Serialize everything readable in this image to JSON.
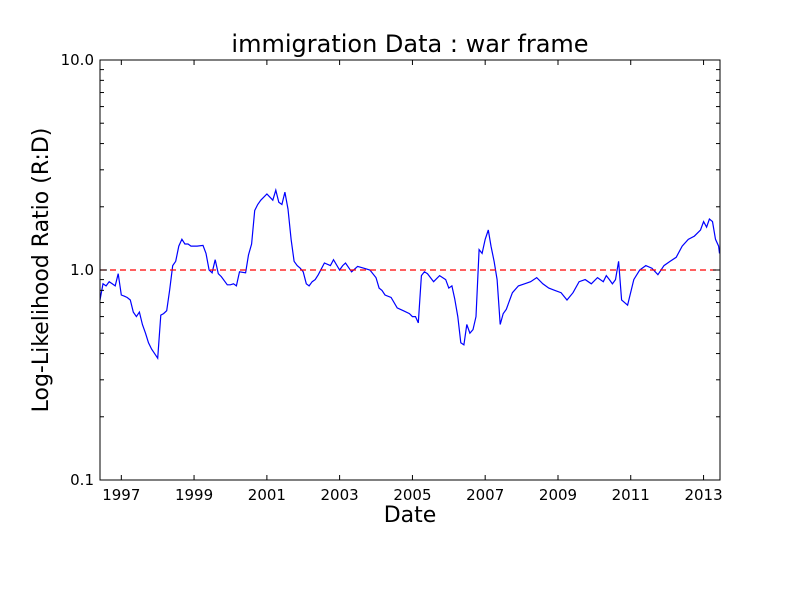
{
  "chart_data": {
    "type": "line",
    "title": "immigration Data : war frame",
    "xlabel": "Date",
    "ylabel": "Log-Likelihood Ratio (R:D)",
    "yscale": "log",
    "xlim": [
      "1996-06-01",
      "2013-06-15"
    ],
    "ylim": [
      0.1,
      10.0
    ],
    "x_ticks": [
      {
        "value": "1997-01-01",
        "label": "1997"
      },
      {
        "value": "1999-01-01",
        "label": "1999"
      },
      {
        "value": "2001-01-01",
        "label": "2001"
      },
      {
        "value": "2003-01-01",
        "label": "2003"
      },
      {
        "value": "2005-01-01",
        "label": "2005"
      },
      {
        "value": "2007-01-01",
        "label": "2007"
      },
      {
        "value": "2009-01-01",
        "label": "2009"
      },
      {
        "value": "2011-01-01",
        "label": "2011"
      },
      {
        "value": "2013-01-01",
        "label": "2013"
      }
    ],
    "y_ticks": [
      {
        "value": 0.1,
        "label": "0.1"
      },
      {
        "value": 1.0,
        "label": "1.0"
      },
      {
        "value": 10.0,
        "label": "10.0"
      }
    ],
    "grid": false,
    "reference_line": {
      "y": 1.0,
      "style": "dashed",
      "color": "#ff0000"
    },
    "series": [
      {
        "color": "#0000ff",
        "x": [
          "1996-06-01",
          "1996-07-01",
          "1996-08-01",
          "1996-09-01",
          "1996-10-01",
          "1996-11-01",
          "1996-12-01",
          "1997-01-01",
          "1997-02-01",
          "1997-03-01",
          "1997-04-01",
          "1997-05-01",
          "1997-06-01",
          "1997-07-01",
          "1997-08-01",
          "1997-09-01",
          "1997-10-01",
          "1997-11-01",
          "1997-12-01",
          "1998-01-01",
          "1998-02-01",
          "1998-03-01",
          "1998-04-01",
          "1998-05-01",
          "1998-06-01",
          "1998-07-01",
          "1998-08-01",
          "1998-09-01",
          "1998-10-01",
          "1998-11-01",
          "1998-12-01",
          "1999-02-01",
          "1999-04-01",
          "1999-05-01",
          "1999-06-01",
          "1999-07-01",
          "1999-08-01",
          "1999-09-01",
          "1999-10-01",
          "1999-12-01",
          "2000-01-01",
          "2000-02-01",
          "2000-03-01",
          "2000-04-01",
          "2000-06-01",
          "2000-07-01",
          "2000-08-01",
          "2000-09-01",
          "2000-10-01",
          "2000-11-01",
          "2001-01-01",
          "2001-03-01",
          "2001-04-01",
          "2001-05-01",
          "2001-06-01",
          "2001-07-01",
          "2001-08-01",
          "2001-09-01",
          "2001-10-01",
          "2001-11-01",
          "2001-12-01",
          "2002-01-01",
          "2002-02-01",
          "2002-03-01",
          "2002-04-01",
          "2002-05-01",
          "2002-06-01",
          "2002-08-01",
          "2002-10-01",
          "2002-11-01",
          "2003-01-01",
          "2003-02-01",
          "2003-03-01",
          "2003-05-01",
          "2003-07-01",
          "2003-09-01",
          "2003-11-01",
          "2004-01-01",
          "2004-02-01",
          "2004-03-01",
          "2004-04-01",
          "2004-06-01",
          "2004-08-01",
          "2004-10-01",
          "2004-12-01",
          "2005-01-01",
          "2005-02-01",
          "2005-03-01",
          "2005-04-01",
          "2005-05-01",
          "2005-06-01",
          "2005-08-01",
          "2005-10-01",
          "2005-12-01",
          "2006-01-01",
          "2006-02-01",
          "2006-03-01",
          "2006-04-01",
          "2006-05-01",
          "2006-06-01",
          "2006-07-01",
          "2006-08-01",
          "2006-09-01",
          "2006-10-01",
          "2006-11-01",
          "2006-12-01",
          "2007-01-01",
          "2007-02-01",
          "2007-03-01",
          "2007-04-01",
          "2007-05-01",
          "2007-06-01",
          "2007-07-01",
          "2007-08-01",
          "2007-10-01",
          "2007-12-01",
          "2008-02-01",
          "2008-04-01",
          "2008-06-01",
          "2008-08-01",
          "2008-10-01",
          "2008-12-01",
          "2009-02-01",
          "2009-04-01",
          "2009-06-01",
          "2009-08-01",
          "2009-10-01",
          "2009-12-01",
          "2010-02-01",
          "2010-04-01",
          "2010-05-01",
          "2010-06-01",
          "2010-07-01",
          "2010-08-01",
          "2010-09-01",
          "2010-10-01",
          "2010-12-01",
          "2011-02-01",
          "2011-04-01",
          "2011-06-01",
          "2011-08-01",
          "2011-10-01",
          "2011-12-01",
          "2012-02-01",
          "2012-04-01",
          "2012-06-01",
          "2012-08-01",
          "2012-10-01",
          "2012-12-01",
          "2013-01-01",
          "2013-02-01",
          "2013-03-01",
          "2013-04-01",
          "2013-05-01",
          "2013-06-01",
          "2013-06-10"
        ],
        "y": [
          0.72,
          0.86,
          0.84,
          0.88,
          0.86,
          0.84,
          0.96,
          0.76,
          0.75,
          0.74,
          0.72,
          0.63,
          0.6,
          0.63,
          0.55,
          0.5,
          0.45,
          0.42,
          0.4,
          0.38,
          0.61,
          0.62,
          0.64,
          0.8,
          1.05,
          1.1,
          1.3,
          1.4,
          1.33,
          1.33,
          1.3,
          1.3,
          1.31,
          1.2,
          1.0,
          0.97,
          1.12,
          0.96,
          0.93,
          0.85,
          0.85,
          0.86,
          0.84,
          0.98,
          0.97,
          1.18,
          1.33,
          1.92,
          2.05,
          2.15,
          2.3,
          2.15,
          2.4,
          2.1,
          2.05,
          2.35,
          1.95,
          1.4,
          1.1,
          1.05,
          1.02,
          0.98,
          0.86,
          0.84,
          0.88,
          0.9,
          0.95,
          1.08,
          1.05,
          1.12,
          1.0,
          1.05,
          1.08,
          0.98,
          1.04,
          1.02,
          1.0,
          0.92,
          0.82,
          0.8,
          0.76,
          0.74,
          0.66,
          0.64,
          0.62,
          0.6,
          0.6,
          0.56,
          0.94,
          0.98,
          0.96,
          0.88,
          0.94,
          0.9,
          0.82,
          0.84,
          0.73,
          0.6,
          0.45,
          0.44,
          0.55,
          0.5,
          0.52,
          0.6,
          1.25,
          1.2,
          1.4,
          1.55,
          1.3,
          1.1,
          0.9,
          0.55,
          0.62,
          0.65,
          0.78,
          0.84,
          0.86,
          0.88,
          0.92,
          0.86,
          0.82,
          0.8,
          0.78,
          0.72,
          0.78,
          0.88,
          0.9,
          0.86,
          0.92,
          0.88,
          0.94,
          0.9,
          0.86,
          0.9,
          1.1,
          0.72,
          0.68,
          0.9,
          1.0,
          1.05,
          1.02,
          0.95,
          1.05,
          1.1,
          1.15,
          1.3,
          1.4,
          1.45,
          1.55,
          1.7,
          1.6,
          1.75,
          1.7,
          1.4,
          1.3,
          1.2
        ]
      }
    ]
  }
}
